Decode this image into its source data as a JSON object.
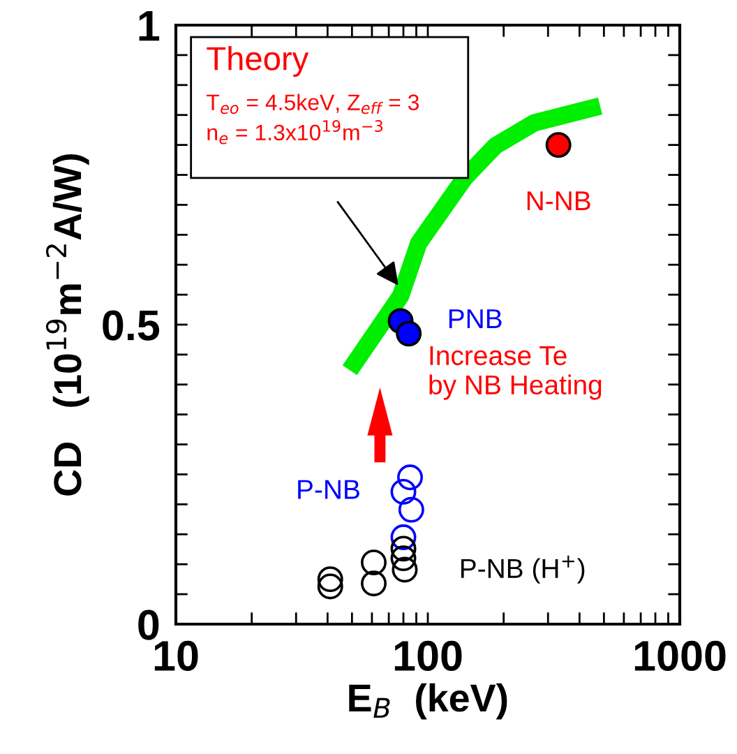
{
  "chart_data": {
    "type": "scatter",
    "xlabel": "E$_{B}$  (keV)",
    "ylabel": "CD   (10$^{19}$m$^{−2}$A/W)",
    "log": "x",
    "grid": false,
    "marker": "circle",
    "xlim": [
      10,
      1000
    ],
    "xticks": [
      10,
      {
        "value": 20,
        "label": null
      },
      {
        "value": 30,
        "label": null
      },
      {
        "value": 40,
        "label": null
      },
      {
        "value": 50,
        "label": null
      },
      {
        "value": 60,
        "label": null
      },
      {
        "value": 70,
        "label": null
      },
      {
        "value": 80,
        "label": null
      },
      {
        "value": 90,
        "label": null
      },
      100,
      {
        "value": 200,
        "label": null
      },
      {
        "value": 300,
        "label": null
      },
      {
        "value": 400,
        "label": null
      },
      {
        "value": 500,
        "label": null
      },
      {
        "value": 600,
        "label": null
      },
      {
        "value": 700,
        "label": null
      },
      {
        "value": 800,
        "label": null
      },
      {
        "value": 900,
        "label": null
      },
      1000
    ],
    "ylim": [
      0,
      1
    ],
    "yticks": [
      0,
      {
        "value": 0.05,
        "label": null
      },
      {
        "value": 0.1,
        "label": null
      },
      {
        "value": 0.15,
        "label": null
      },
      {
        "value": 0.2,
        "label": null
      },
      {
        "value": 0.25,
        "label": null
      },
      {
        "value": 0.3,
        "label": null
      },
      {
        "value": 0.35,
        "label": null
      },
      {
        "value": 0.4,
        "label": null
      },
      {
        "value": 0.45,
        "label": null
      },
      0.5,
      {
        "value": 0.55,
        "label": null
      },
      {
        "value": 0.6,
        "label": null
      },
      {
        "value": 0.65,
        "label": null
      },
      {
        "value": 0.7,
        "label": null
      },
      {
        "value": 0.75,
        "label": null
      },
      {
        "value": 0.8,
        "label": null
      },
      {
        "value": 0.85,
        "label": null
      },
      {
        "value": 0.9,
        "label": null
      },
      {
        "value": 0.95,
        "label": null
      },
      1
    ],
    "series": [
      {
        "type": "line",
        "marker": "none",
        "color": "#00ee00",
        "x": [
          49,
          78,
          92,
          140,
          186,
          265,
          483
        ],
        "values": [
          0.424,
          0.548,
          0.636,
          0.745,
          0.799,
          0.837,
          0.865
        ]
      },
      {
        "name": "N-NB",
        "color": "#ff0000",
        "x": [
          330
        ],
        "values": [
          0.8
        ]
      },
      {
        "name": "PNB",
        "color": "#0000ff",
        "x": [
          78,
          84
        ],
        "values": [
          0.506,
          0.485
        ]
      },
      {
        "name": "P-NB",
        "color": "#0000ff",
        "x": [
          85,
          80,
          86,
          80
        ],
        "values": [
          0.245,
          0.221,
          0.191,
          0.145
        ]
      },
      {
        "name": "P-NB (H$^{+}$)",
        "color": "#000000",
        "x": [
          41,
          41,
          61,
          61,
          80,
          80,
          81
        ],
        "values": [
          0.075,
          0.063,
          0.103,
          0.068,
          0.126,
          0.11,
          0.091
        ]
      }
    ],
    "annotations": [
      "Theory",
      "T$_{eo}$ = 4.5keV, Z$_{eff}$ = 3\nn$_{e}$ = 1.3x10$^{19}$m$^{−3}$",
      "Increase Te\nby NB Heating"
    ]
  }
}
